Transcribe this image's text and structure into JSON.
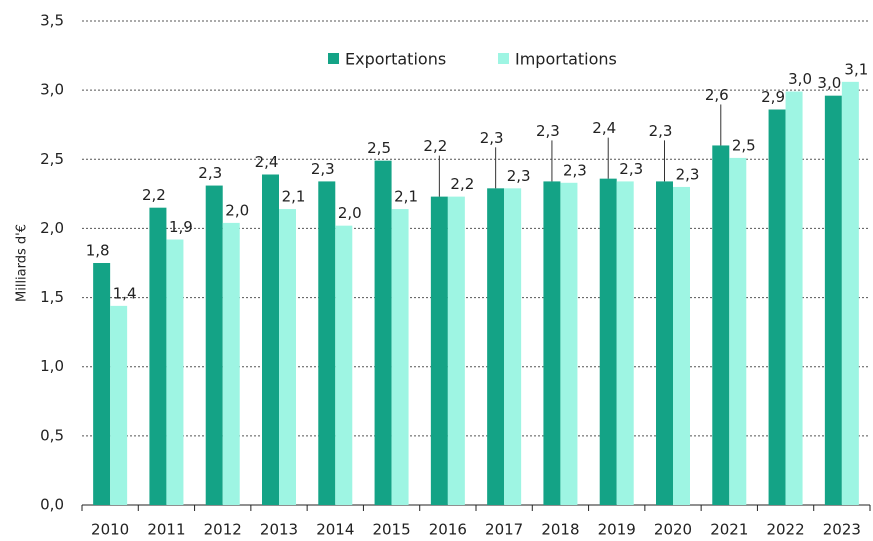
{
  "chart_data": {
    "type": "bar",
    "y_label": "Milliards d'€",
    "categories": [
      "2010",
      "2011",
      "2012",
      "2013",
      "2014",
      "2015",
      "2016",
      "2017",
      "2018",
      "2019",
      "2020",
      "2021",
      "2022",
      "2023"
    ],
    "series": [
      {
        "name": "Exportations",
        "color": "#14a386",
        "values": [
          1.75,
          2.15,
          2.31,
          2.39,
          2.34,
          2.49,
          2.23,
          2.29,
          2.34,
          2.36,
          2.34,
          2.6,
          2.86,
          2.96
        ],
        "value_labels": [
          "1,8",
          "2,2",
          "2,3",
          "2,4",
          "2,3",
          "2,5",
          "2,2",
          "2,3",
          "2,3",
          "2,4",
          "2,3",
          "2,6",
          "2,9",
          "3,0"
        ]
      },
      {
        "name": "Importations",
        "color": "#9ef5e3",
        "values": [
          1.44,
          1.92,
          2.04,
          2.14,
          2.02,
          2.14,
          2.23,
          2.29,
          2.33,
          2.34,
          2.3,
          2.51,
          2.99,
          3.06
        ],
        "value_labels": [
          "1,4",
          "1,9",
          "2,0",
          "2,1",
          "2,0",
          "2,1",
          "2,2",
          "2,3",
          "2,3",
          "2,3",
          "2,3",
          "2,5",
          "3,0",
          "3,1"
        ]
      }
    ],
    "ylim": [
      0,
      3.5
    ],
    "yticks": [
      {
        "value": 0,
        "label": "0,0"
      },
      {
        "value": 0.5,
        "label": "0,5"
      },
      {
        "value": 1,
        "label": "1,0"
      },
      {
        "value": 1.5,
        "label": "1,5"
      },
      {
        "value": 2,
        "label": "2,0"
      },
      {
        "value": 2.5,
        "label": "2,5"
      },
      {
        "value": 3,
        "label": "3,0"
      },
      {
        "value": 3.5,
        "label": "3,5"
      }
    ],
    "grid": true
  }
}
